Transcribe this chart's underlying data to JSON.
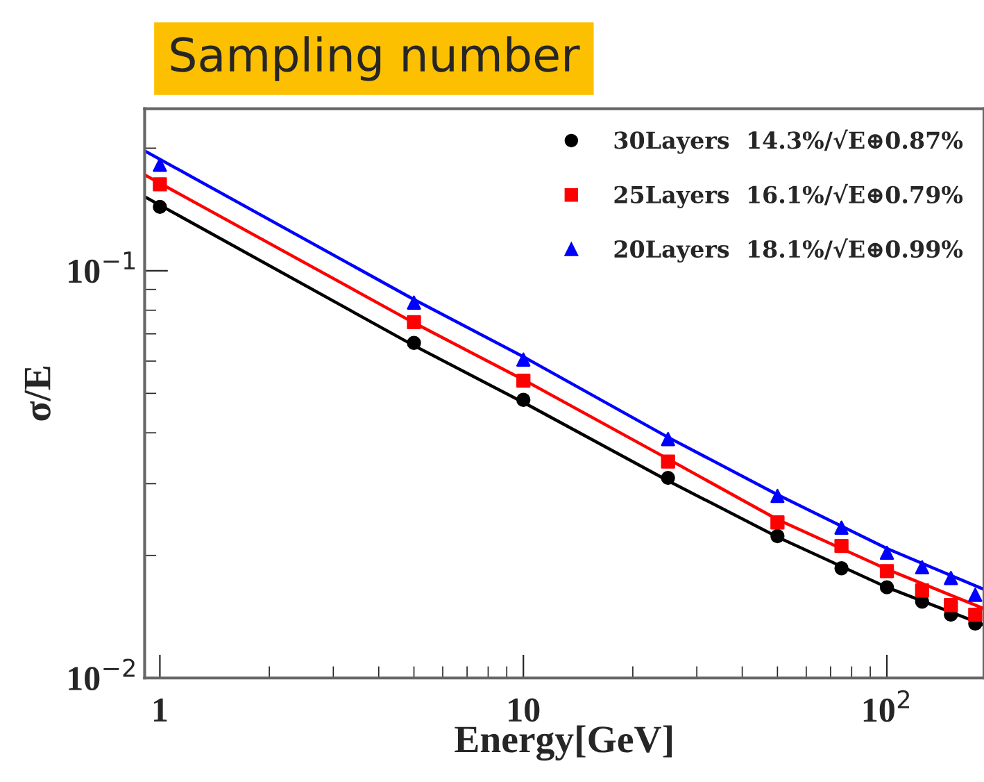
{
  "chart_data": {
    "type": "scatter",
    "title": "Sampling number",
    "xlabel": "Energy[GeV]",
    "ylabel": "σ/E",
    "log": "xy",
    "x": [
      1,
      5,
      10,
      25,
      50,
      75,
      100,
      125,
      150,
      175
    ],
    "xlim": [
      0.908,
      185
    ],
    "ylim": [
      0.01,
      0.25
    ],
    "xticks": [
      1,
      10,
      {
        "value": 100,
        "label": "10$^{2}$"
      }
    ],
    "yticks": [
      {
        "value": 0.01,
        "label": "10$^{−2}$"
      },
      {
        "value": 0.1,
        "label": "10$^{−1}$"
      }
    ],
    "grid": false,
    "legend": "top right",
    "series": [
      {
        "name": "30Layers  14.3%/√E⊕0.87%",
        "color": "#000000",
        "marker": "circle",
        "values": [
          0.1435,
          0.0665,
          0.0482,
          0.031,
          0.0223,
          0.0186,
          0.0167,
          0.0154,
          0.0143,
          0.0136
        ]
      },
      {
        "name": "25Layers  16.1%/√E⊕0.79%",
        "color": "#ff0000",
        "marker": "square",
        "values": [
          0.163,
          0.0748,
          0.0537,
          0.034,
          0.0241,
          0.0211,
          0.0183,
          0.0164,
          0.0151,
          0.0143
        ]
      },
      {
        "name": "20Layers  18.1%/√E⊕0.99%",
        "color": "#0000ff",
        "marker": "triangle",
        "values": [
          0.182,
          0.0835,
          0.0605,
          0.0386,
          0.028,
          0.0234,
          0.0203,
          0.0187,
          0.0176,
          0.016
        ]
      },
      {
        "type": "line",
        "color": "#000000",
        "x": [
          0.908,
          5,
          10,
          25,
          50,
          100,
          185
        ],
        "values": [
          0.152,
          0.0655,
          0.0475,
          0.0305,
          0.0222,
          0.0167,
          0.0135
        ]
      },
      {
        "type": "line",
        "color": "#ff0000",
        "x": [
          0.908,
          5,
          10,
          25,
          50,
          100,
          185
        ],
        "values": [
          0.172,
          0.0745,
          0.054,
          0.0345,
          0.0245,
          0.0185,
          0.0148
        ]
      },
      {
        "type": "line",
        "color": "#0000ff",
        "x": [
          0.908,
          5,
          10,
          25,
          50,
          100,
          185
        ],
        "values": [
          0.197,
          0.085,
          0.0615,
          0.039,
          0.0282,
          0.0208,
          0.0165
        ]
      }
    ]
  }
}
